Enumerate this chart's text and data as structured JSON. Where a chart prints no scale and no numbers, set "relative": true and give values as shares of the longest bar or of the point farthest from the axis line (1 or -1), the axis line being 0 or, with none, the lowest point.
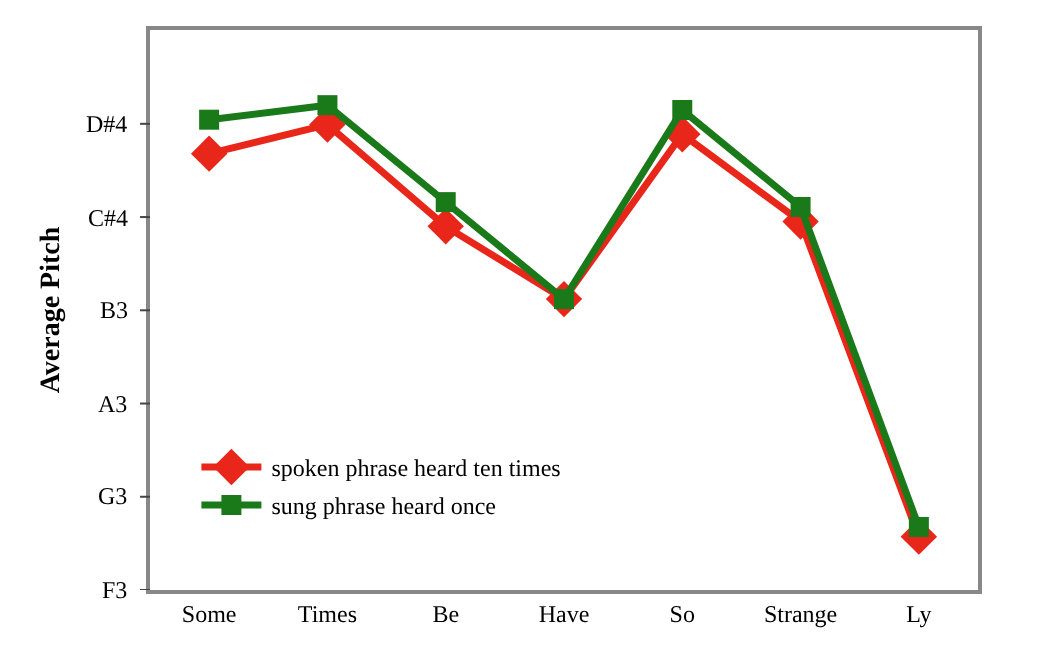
{
  "chart_data": {
    "type": "line",
    "ylabel": "Average Pitch",
    "relative": true,
    "categories": [
      "Some",
      "Times",
      "Be",
      "Have",
      "So",
      "Strange",
      "Ly"
    ],
    "series": [
      {
        "name": "spoken phrase heard ten times",
        "color": "#e8261a",
        "marker": "diamond",
        "values": [
          0.9,
          0.96,
          0.75,
          0.6,
          0.94,
          0.76,
          0.11
        ]
      },
      {
        "name": "sung phrase heard once",
        "color": "#1a7a1a",
        "marker": "square",
        "values": [
          0.97,
          1.0,
          0.8,
          0.6,
          0.99,
          0.79,
          0.13
        ]
      }
    ],
    "annotations": [
      "F3",
      "G3",
      "A3",
      "B3",
      "C#4",
      "D#4"
    ],
    "legend": "bottom left",
    "line_style": "solid"
  }
}
